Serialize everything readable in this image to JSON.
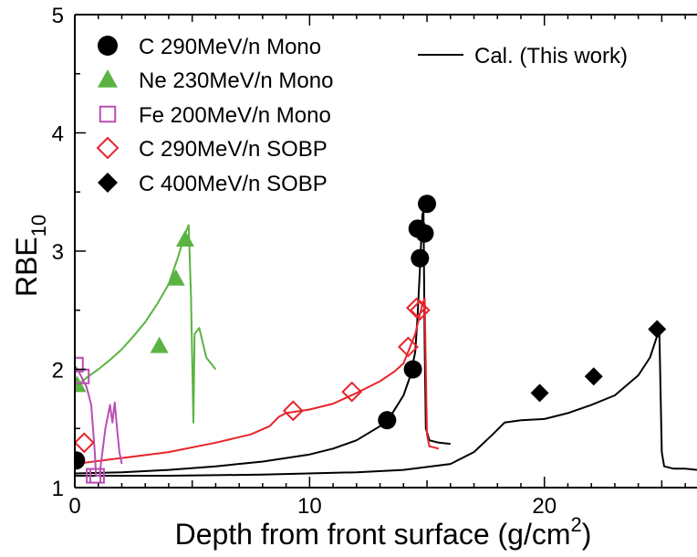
{
  "chart_data": {
    "type": "scatter",
    "xlabel": "Depth from front surface (g/cm",
    "xlabel_sup": "2",
    "xlabel_end": ")",
    "ylabel": "RBE",
    "ylabel_sub": "10",
    "xlim": [
      0,
      26.5
    ],
    "ylim": [
      1,
      5
    ],
    "x_ticks": [
      0,
      10,
      20
    ],
    "x_tick_labels": [
      "0",
      "10",
      "20"
    ],
    "y_ticks": [
      1,
      2,
      3,
      4,
      5
    ],
    "y_tick_labels": [
      "1",
      "2",
      "3",
      "4",
      "5"
    ],
    "grid": false,
    "legend_position": "top",
    "series": [
      {
        "name": "C 290MeV/n Mono",
        "marker": "circle-filled",
        "color": "#000000",
        "points": [
          [
            0.05,
            1.23
          ],
          [
            13.3,
            1.57
          ],
          [
            14.4,
            2.0
          ],
          [
            14.6,
            3.19
          ],
          [
            14.7,
            2.94
          ],
          [
            14.9,
            3.15
          ],
          [
            15.0,
            3.4
          ]
        ]
      },
      {
        "name": "Ne 230MeV/n Mono",
        "marker": "triangle-filled",
        "color": "#5ab342",
        "points": [
          [
            0.1,
            1.87
          ],
          [
            3.6,
            2.2
          ],
          [
            4.3,
            2.77
          ],
          [
            4.7,
            3.1
          ]
        ]
      },
      {
        "name": "Fe 200MeV/n Mono",
        "marker": "square-open",
        "color": "#b94fb2",
        "points": [
          [
            0.05,
            2.04
          ],
          [
            0.3,
            1.94
          ],
          [
            0.8,
            1.1
          ],
          [
            0.95,
            1.1
          ]
        ]
      },
      {
        "name": "C 290MeV/n SOBP",
        "marker": "diamond-open",
        "color": "#e8232a",
        "points": [
          [
            0.4,
            1.38
          ],
          [
            9.3,
            1.65
          ],
          [
            11.8,
            1.81
          ],
          [
            14.2,
            2.19
          ],
          [
            14.55,
            2.52
          ],
          [
            14.7,
            2.5
          ]
        ]
      },
      {
        "name": "C 400MeV/n SOBP",
        "marker": "diamond-filled",
        "color": "#000000",
        "points": [
          [
            19.8,
            1.8
          ],
          [
            22.1,
            1.94
          ],
          [
            24.8,
            2.34
          ]
        ]
      }
    ],
    "lines": [
      {
        "name": "Cal. (This work)",
        "color": "#000000",
        "points": [
          [
            0,
            1.12
          ],
          [
            2,
            1.13
          ],
          [
            4,
            1.15
          ],
          [
            6,
            1.18
          ],
          [
            8,
            1.22
          ],
          [
            10,
            1.28
          ],
          [
            11,
            1.33
          ],
          [
            12,
            1.4
          ],
          [
            13,
            1.52
          ],
          [
            13.5,
            1.62
          ],
          [
            14,
            1.78
          ],
          [
            14.3,
            1.95
          ],
          [
            14.5,
            2.15
          ],
          [
            14.6,
            2.45
          ],
          [
            14.7,
            2.85
          ],
          [
            14.8,
            3.3
          ],
          [
            14.85,
            3.35
          ],
          [
            14.9,
            2.2
          ],
          [
            14.95,
            1.5
          ],
          [
            15.1,
            1.4
          ],
          [
            15.5,
            1.38
          ],
          [
            16,
            1.37
          ]
        ]
      },
      {
        "name": "",
        "color": "#000000",
        "points": [
          [
            0,
            1.1
          ],
          [
            4,
            1.1
          ],
          [
            8,
            1.11
          ],
          [
            12,
            1.13
          ],
          [
            14,
            1.15
          ],
          [
            16,
            1.2
          ],
          [
            17,
            1.3
          ],
          [
            17.8,
            1.45
          ],
          [
            18.3,
            1.55
          ],
          [
            19,
            1.57
          ],
          [
            20,
            1.58
          ],
          [
            21,
            1.63
          ],
          [
            22,
            1.7
          ],
          [
            23,
            1.78
          ],
          [
            24,
            1.95
          ],
          [
            24.5,
            2.1
          ],
          [
            24.8,
            2.28
          ],
          [
            24.9,
            2.3
          ],
          [
            25.0,
            1.3
          ],
          [
            25.1,
            1.18
          ],
          [
            25.5,
            1.16
          ],
          [
            26,
            1.16
          ],
          [
            26.5,
            1.15
          ]
        ]
      },
      {
        "name": "",
        "color": "#e8232a",
        "points": [
          [
            0,
            1.2
          ],
          [
            2,
            1.25
          ],
          [
            4,
            1.3
          ],
          [
            6,
            1.38
          ],
          [
            7.5,
            1.45
          ],
          [
            8.3,
            1.52
          ],
          [
            8.7,
            1.6
          ],
          [
            9,
            1.63
          ],
          [
            10,
            1.66
          ],
          [
            11,
            1.71
          ],
          [
            12,
            1.8
          ],
          [
            13,
            1.9
          ],
          [
            13.6,
            1.98
          ],
          [
            14,
            2.05
          ],
          [
            14.5,
            2.3
          ],
          [
            14.8,
            2.55
          ],
          [
            14.9,
            2.6
          ],
          [
            15.0,
            1.45
          ],
          [
            15.1,
            1.35
          ],
          [
            15.5,
            1.33
          ]
        ]
      },
      {
        "name": "",
        "color": "#5ab342",
        "points": [
          [
            0,
            1.85
          ],
          [
            0.5,
            1.93
          ],
          [
            1,
            2.0
          ],
          [
            1.5,
            2.08
          ],
          [
            2,
            2.17
          ],
          [
            2.5,
            2.28
          ],
          [
            3,
            2.4
          ],
          [
            3.5,
            2.55
          ],
          [
            4,
            2.72
          ],
          [
            4.4,
            2.95
          ],
          [
            4.7,
            3.15
          ],
          [
            4.85,
            3.22
          ],
          [
            4.95,
            2.6
          ],
          [
            5.05,
            1.55
          ],
          [
            5.1,
            2.3
          ],
          [
            5.3,
            2.35
          ],
          [
            5.6,
            2.1
          ],
          [
            6,
            2.0
          ]
        ]
      },
      {
        "name": "",
        "color": "#b94fb2",
        "points": [
          [
            0,
            2.03
          ],
          [
            0.2,
            1.97
          ],
          [
            0.5,
            1.85
          ],
          [
            0.7,
            1.7
          ],
          [
            0.85,
            1.3
          ],
          [
            0.9,
            1.1
          ],
          [
            1.05,
            1.1
          ],
          [
            1.3,
            1.5
          ],
          [
            1.5,
            1.7
          ],
          [
            1.6,
            1.55
          ],
          [
            1.7,
            1.72
          ],
          [
            1.8,
            1.5
          ],
          [
            1.9,
            1.3
          ],
          [
            2.0,
            1.2
          ]
        ]
      }
    ]
  }
}
